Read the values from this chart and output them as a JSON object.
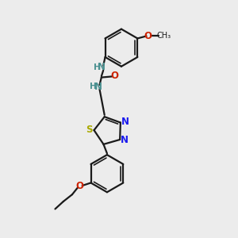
{
  "bg_color": "#ececec",
  "bond_color": "#1a1a1a",
  "N_teal_color": "#4a9090",
  "N_blue_color": "#1a1aee",
  "O_color": "#cc2200",
  "S_color": "#aaaa00",
  "fig_size": [
    3.0,
    3.0
  ],
  "dpi": 100,
  "xlim": [
    0,
    10
  ],
  "ylim": [
    0,
    10
  ]
}
